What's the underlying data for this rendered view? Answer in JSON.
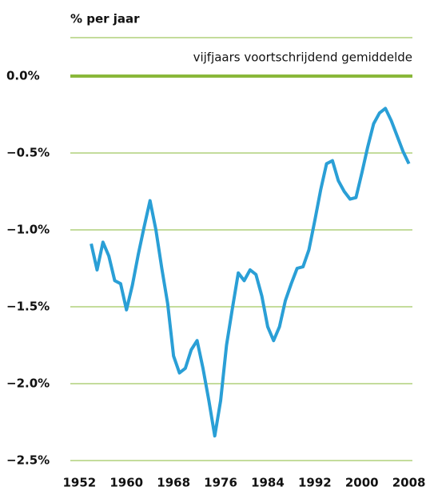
{
  "chart_data": {
    "type": "line",
    "title": "% per jaar",
    "annotation": "vijfjaars voortschrijdend gemiddelde",
    "x": [
      1954,
      1955,
      1956,
      1957,
      1958,
      1959,
      1960,
      1961,
      1962,
      1963,
      1964,
      1965,
      1966,
      1967,
      1968,
      1969,
      1970,
      1971,
      1972,
      1973,
      1974,
      1975,
      1976,
      1977,
      1978,
      1979,
      1980,
      1981,
      1982,
      1983,
      1984,
      1985,
      1986,
      1987,
      1988,
      1989,
      1990,
      1991,
      1992,
      1993,
      1994,
      1995,
      1996,
      1997,
      1998,
      1999,
      2000,
      2001,
      2002,
      2003,
      2004,
      2005,
      2006,
      2007,
      2008
    ],
    "series": [
      {
        "color": "#2a9fd6",
        "values": [
          -1.09,
          -1.26,
          -1.08,
          -1.17,
          -1.33,
          -1.35,
          -1.52,
          -1.36,
          -1.16,
          -0.98,
          -0.81,
          -1.0,
          -1.25,
          -1.48,
          -1.82,
          -1.93,
          -1.9,
          -1.78,
          -1.72,
          -1.9,
          -2.11,
          -2.34,
          -2.11,
          -1.75,
          -1.51,
          -1.28,
          -1.33,
          -1.26,
          -1.29,
          -1.43,
          -1.63,
          -1.72,
          -1.63,
          -1.46,
          -1.35,
          -1.25,
          -1.24,
          -1.13,
          -0.94,
          -0.74,
          -0.57,
          -0.55,
          -0.68,
          -0.75,
          -0.8,
          -0.79,
          -0.63,
          -0.46,
          -0.31,
          -0.24,
          -0.21,
          -0.29,
          -0.39,
          -0.49,
          -0.57
        ]
      }
    ],
    "xlim": [
      1951,
      2009
    ],
    "xticks": [
      1952,
      1960,
      1968,
      1976,
      1984,
      1992,
      2000,
      2008
    ],
    "ylim": [
      -2.5,
      0.25
    ],
    "yticks": [
      {
        "value": 0,
        "label": "0.0%"
      },
      {
        "value": -0.5,
        "label": "−0.5%"
      },
      {
        "value": -1,
        "label": "−1.0%"
      },
      {
        "value": -1.5,
        "label": "−1.5%"
      },
      {
        "value": -2,
        "label": "−2.0%"
      },
      {
        "value": -2.5,
        "label": "−2.5%"
      }
    ],
    "grid_color": "#8ab83a",
    "grid": true
  }
}
